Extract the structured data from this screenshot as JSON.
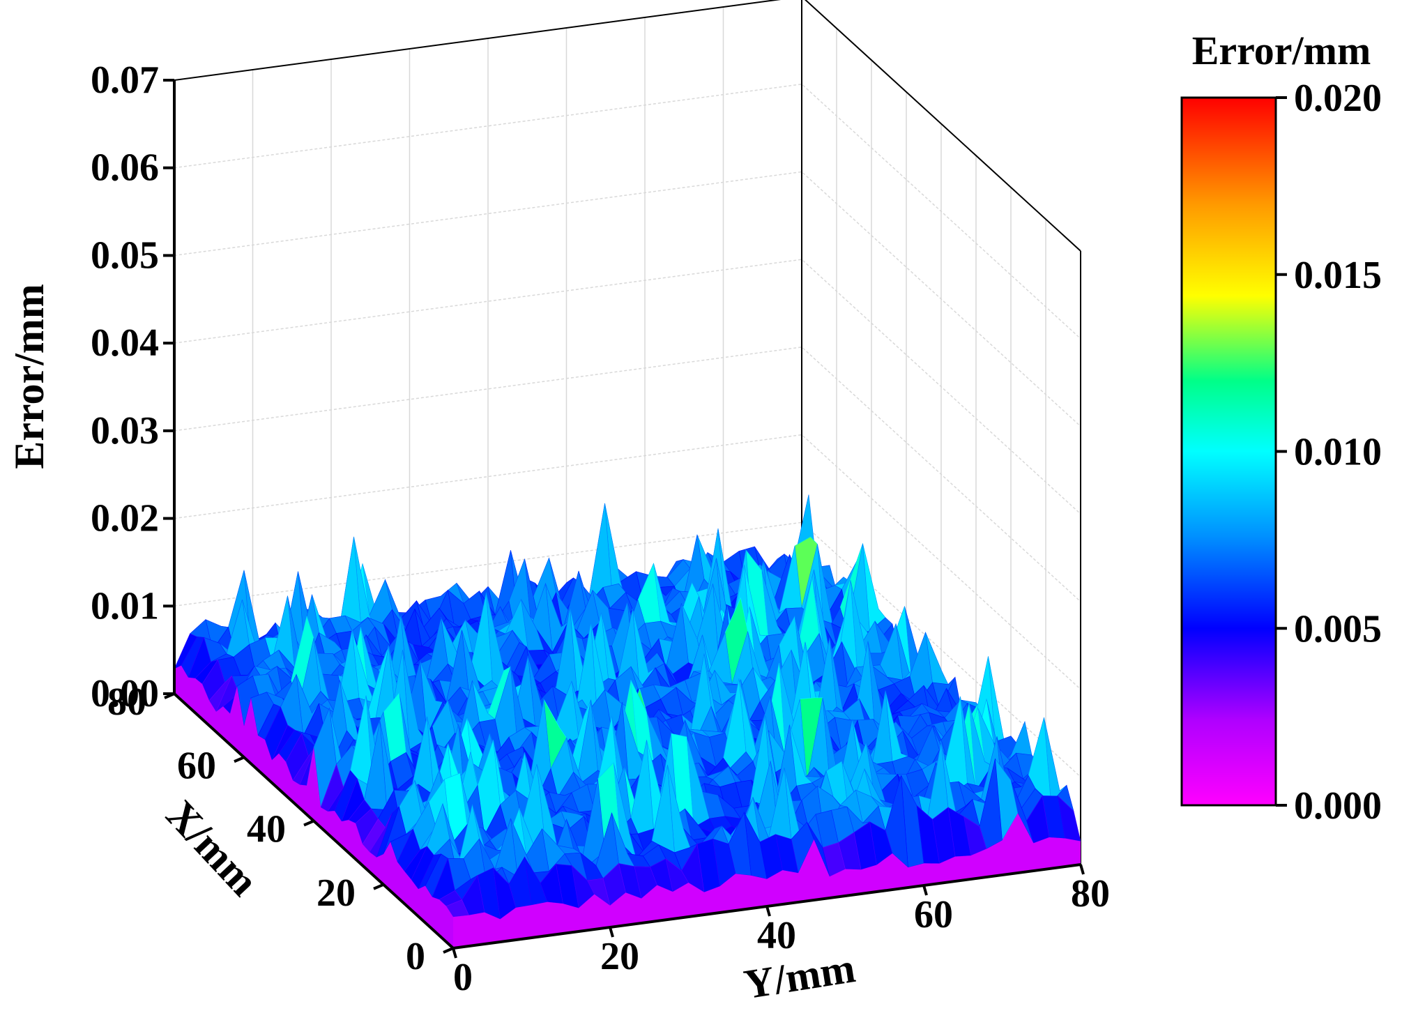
{
  "chart_data": {
    "type": "surface3d",
    "title": "",
    "zlabel": "Error/mm",
    "xlabel": "X/mm",
    "ylabel": "Y/mm",
    "x_ticks": [
      "0",
      "20",
      "40",
      "60",
      "80"
    ],
    "y_ticks": [
      "0",
      "20",
      "40",
      "60",
      "80"
    ],
    "z_ticks": [
      "0.00",
      "0.01",
      "0.02",
      "0.03",
      "0.04",
      "0.05",
      "0.06",
      "0.07"
    ],
    "xlim": [
      0,
      80
    ],
    "ylim": [
      0,
      80
    ],
    "zlim": [
      0,
      0.07
    ],
    "grid": true,
    "surface": {
      "description_value_range": [
        0.0,
        0.016
      ],
      "typical_range": [
        0.004,
        0.01
      ],
      "peak_max": 0.016,
      "pattern": "random spiky error surface over an 81 x 81 mm grid"
    },
    "colorbar": {
      "title": "Error/mm",
      "ticks": [
        "0.000",
        "0.005",
        "0.010",
        "0.015",
        "0.020"
      ],
      "range": [
        0.0,
        0.02
      ],
      "colors": [
        "#ff00ff",
        "#8a00ff",
        "#0000ff",
        "#0080ff",
        "#00ffff",
        "#00ff80",
        "#ffff00",
        "#ff8000",
        "#ff0000"
      ]
    }
  }
}
